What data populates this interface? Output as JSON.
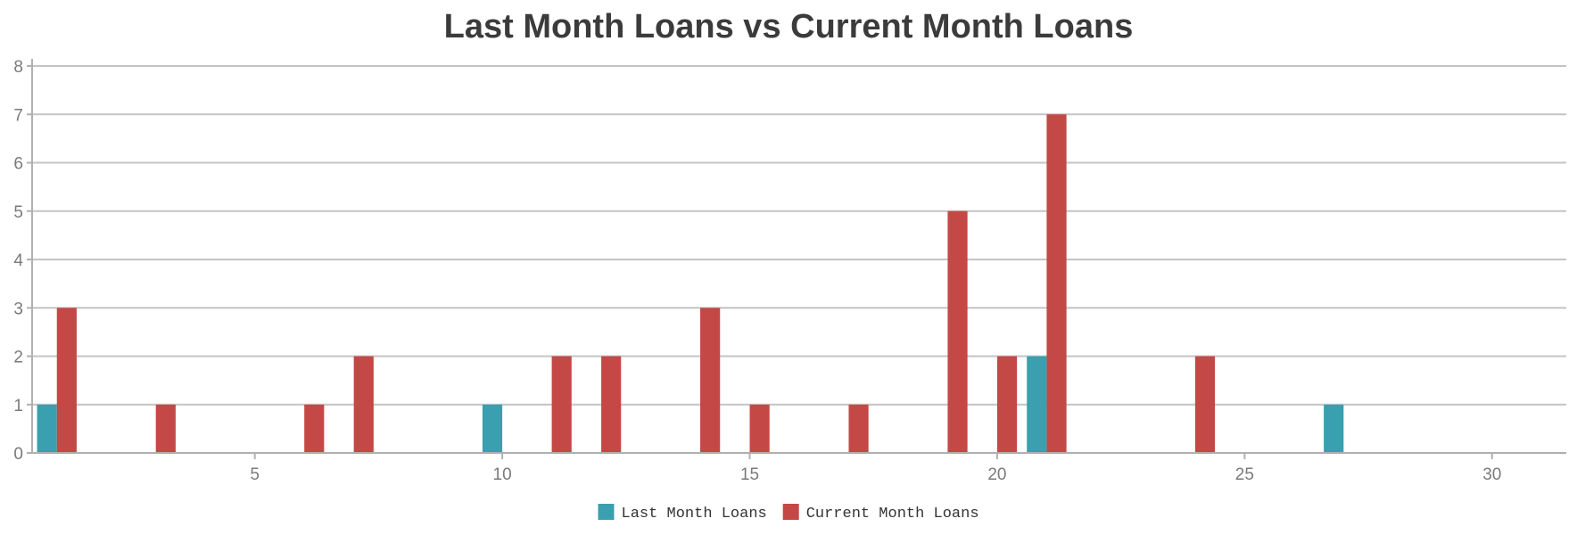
{
  "chart_data": {
    "type": "bar",
    "title": "Last Month Loans vs Current Month Loans",
    "xlabel": "",
    "ylabel": "",
    "x": [
      1,
      2,
      3,
      4,
      5,
      6,
      7,
      8,
      9,
      10,
      11,
      12,
      13,
      14,
      15,
      16,
      17,
      18,
      19,
      20,
      21,
      22,
      23,
      24,
      25,
      26,
      27,
      28,
      29,
      30,
      31
    ],
    "xlim": [
      0.5,
      31.5
    ],
    "xticks": [
      5,
      10,
      15,
      20,
      25,
      30
    ],
    "ylim": [
      0,
      8
    ],
    "yticks": [
      0,
      1,
      2,
      3,
      4,
      5,
      6,
      7,
      8
    ],
    "grid": true,
    "legend_position": "bottom",
    "series": [
      {
        "name": "Last Month Loans",
        "color": "#3a9fae",
        "values": [
          1,
          0,
          0,
          0,
          0,
          0,
          0,
          0,
          0,
          1,
          0,
          0,
          0,
          0,
          0,
          0,
          0,
          0,
          0,
          0,
          2,
          0,
          0,
          0,
          0,
          0,
          1,
          0,
          0,
          0,
          0
        ]
      },
      {
        "name": "Current Month Loans",
        "color": "#c44845",
        "values": [
          3,
          0,
          1,
          0,
          0,
          1,
          2,
          0,
          0,
          0,
          2,
          2,
          0,
          3,
          1,
          0,
          1,
          0,
          5,
          2,
          7,
          0,
          0,
          2,
          0,
          0,
          0,
          0,
          0,
          0,
          0
        ]
      }
    ]
  }
}
